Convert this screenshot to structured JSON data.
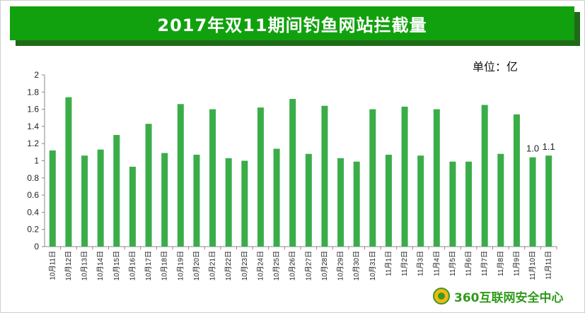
{
  "title": "2017年双11期间钓鱼网站拦截量",
  "unit_label": "单位：亿",
  "brand": {
    "name": "360互联网安全中心",
    "icon": "360-logo-icon"
  },
  "colors": {
    "title_bg": "#12a10e",
    "title_shadow": "#1f6a17",
    "bar": "#3aad48",
    "brand_text": "#2f9a1a"
  },
  "chart_data": {
    "type": "bar",
    "title": "2017年双11期间钓鱼网站拦截量",
    "ylabel": "单位：亿",
    "ylim": [
      0,
      2
    ],
    "yticks": [
      "0",
      "0.2",
      "0.4",
      "0.6",
      "0.8",
      "1",
      "1.2",
      "1.4",
      "1.6",
      "1.8",
      "2"
    ],
    "ytick_values": [
      0,
      0.2,
      0.4,
      0.6,
      0.8,
      1,
      1.2,
      1.4,
      1.6,
      1.8,
      2
    ],
    "grid": false,
    "categories": [
      "10月11日",
      "10月12日",
      "10月13日",
      "10月14日",
      "10月15日",
      "10月16日",
      "10月17日",
      "10月18日",
      "10月19日",
      "10月20日",
      "10月21日",
      "10月22日",
      "10月23日",
      "10月24日",
      "10月25日",
      "10月26日",
      "10月27日",
      "10月28日",
      "10月29日",
      "10月30日",
      "10月31日",
      "11月1日",
      "11月2日",
      "11月3日",
      "11月4日",
      "11月5日",
      "11月6日",
      "11月7日",
      "11月8日",
      "11月9日",
      "11月10日",
      "11月11日"
    ],
    "values": [
      1.12,
      1.74,
      1.06,
      1.13,
      1.3,
      0.93,
      1.43,
      1.09,
      1.66,
      1.07,
      1.6,
      1.03,
      1.0,
      1.62,
      1.14,
      1.72,
      1.08,
      1.64,
      1.03,
      0.99,
      1.6,
      1.07,
      1.63,
      1.06,
      1.6,
      0.99,
      0.99,
      1.65,
      1.08,
      1.54,
      1.04,
      1.06
    ],
    "data_labels": [
      {
        "category": "11月10日",
        "text": "1.0"
      },
      {
        "category": "11月11日",
        "text": "1.1"
      }
    ]
  }
}
